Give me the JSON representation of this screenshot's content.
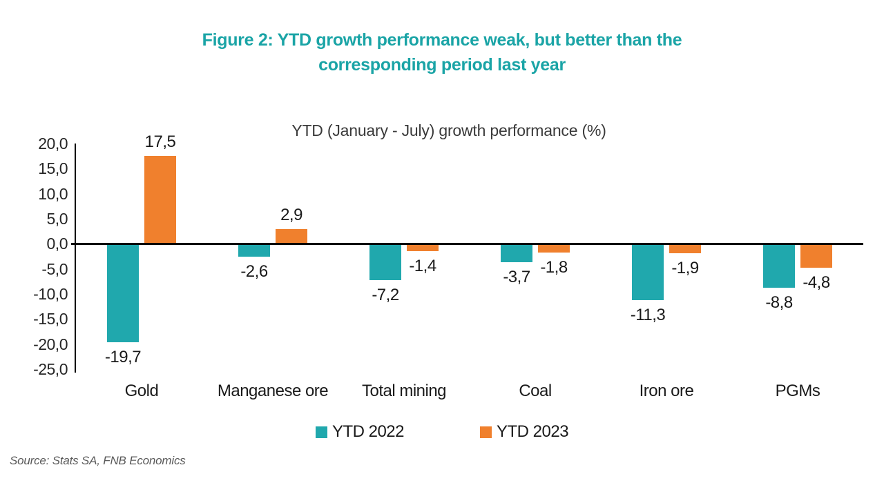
{
  "figure": {
    "title": "Figure 2: YTD growth performance weak, but better than the corresponding period last year",
    "title_lines": [
      "Figure 2: YTD growth performance weak, but better than the",
      "corresponding period last year"
    ],
    "title_color": "#1aa4a6"
  },
  "source_note": "Source: Stats SA, FNB Economics",
  "colors": {
    "teal": "#20a8ad",
    "orange": "#f0802d",
    "axis": "#000000",
    "text": "#1a1a1a",
    "source_text": "#595959"
  },
  "chart_data": {
    "type": "bar",
    "title": "YTD (January - July) growth performance (%)",
    "xlabel": "",
    "ylabel": "",
    "categories": [
      "Gold",
      "Manganese ore",
      "Total mining",
      "Coal",
      "Iron ore",
      "PGMs"
    ],
    "series": [
      {
        "name": "YTD 2022",
        "color": "#20a8ad",
        "values": [
          -19.7,
          -2.6,
          -7.2,
          -3.7,
          -11.3,
          -8.8
        ],
        "labels": [
          "-19,7",
          "-2,6",
          "-7,2",
          "-3,7",
          "-11,3",
          "-8,8"
        ]
      },
      {
        "name": "YTD 2023",
        "color": "#f0802d",
        "values": [
          17.5,
          2.9,
          -1.4,
          -1.8,
          -1.9,
          -4.8
        ],
        "labels": [
          "17,5",
          "2,9",
          "-1,4",
          "-1,8",
          "-1,9",
          "-4,8"
        ]
      }
    ],
    "ylim": [
      -25,
      20
    ],
    "ytick_step": 5,
    "ytick_labels": [
      "20,0",
      "15,0",
      "10,0",
      "5,0",
      "0,0",
      "-5,0",
      "-10,0",
      "-15,0",
      "-20,0",
      "-25,0"
    ],
    "decimal_separator": ",",
    "grid": false,
    "legend_position": "bottom"
  }
}
